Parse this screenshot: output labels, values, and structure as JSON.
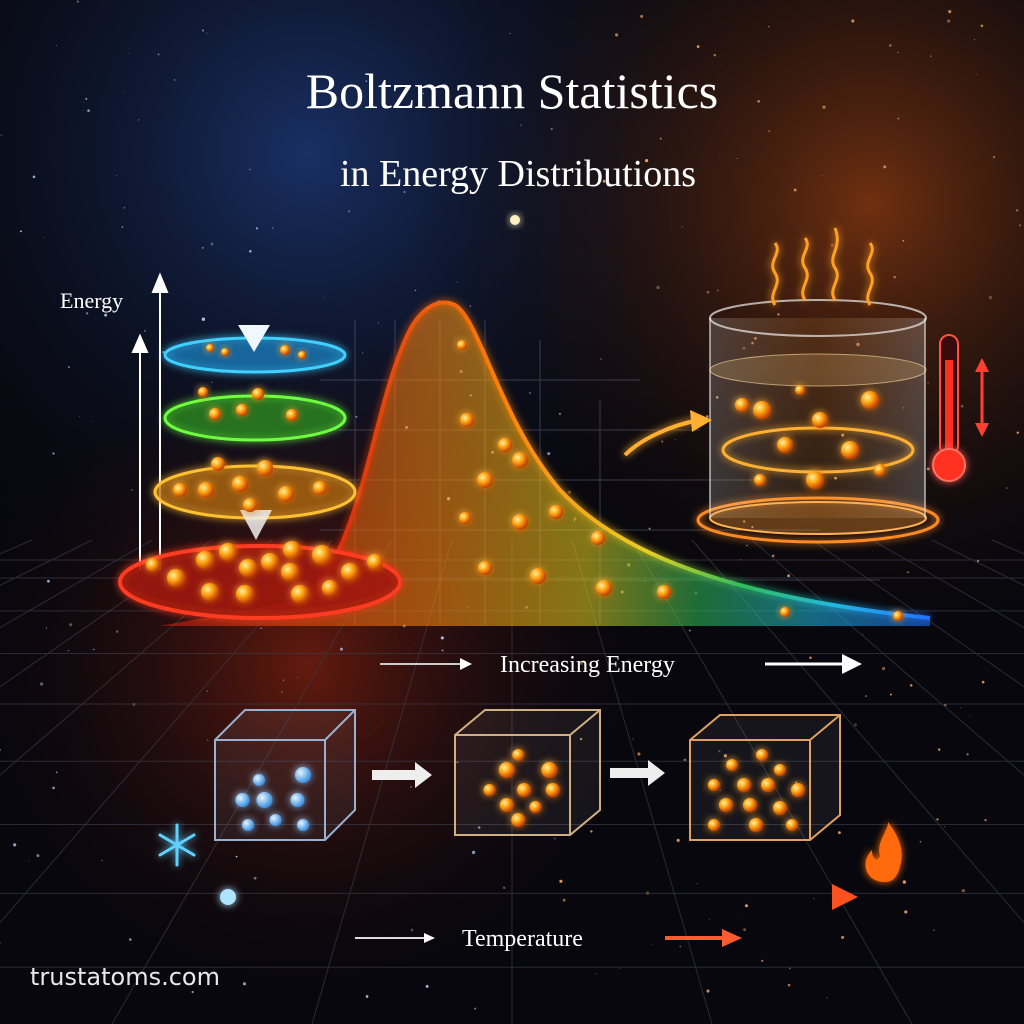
{
  "title": "Boltzmann Statistics",
  "subtitle": "in Energy Distributions",
  "labels": {
    "energy_axis": "Energy",
    "energy_direction": "Increasing Energy",
    "temperature": "Temperature"
  },
  "footer": "trustatoms.com"
}
